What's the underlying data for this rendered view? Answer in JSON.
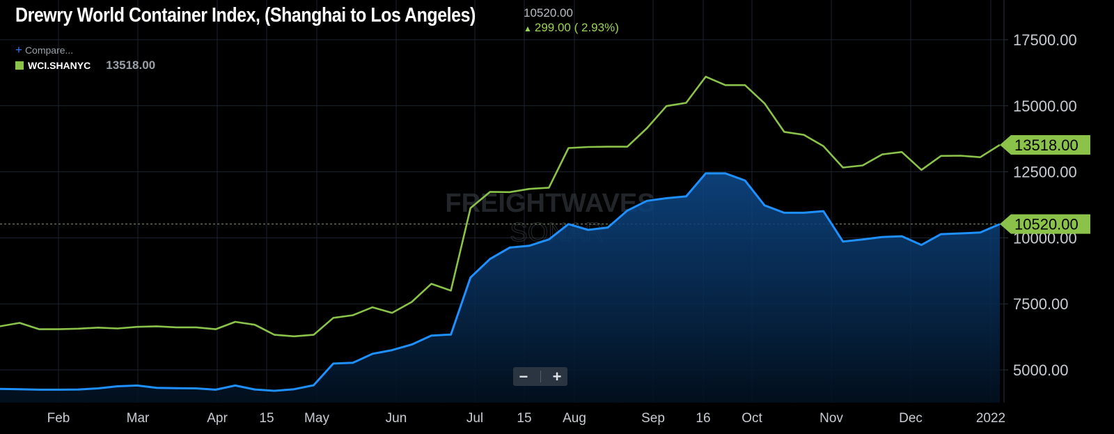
{
  "header": {
    "title": "Drewry World Container Index, (Shanghai to Los Angeles)",
    "last_value": "10520.00",
    "change": "299.00 ( 2.93%)"
  },
  "compare_label": "Compare...",
  "legend": {
    "symbol": "WCI.SHANYC",
    "value": "13518.00",
    "color": "#8bc34a"
  },
  "watermark": {
    "line1": "FREIGHTWAVES",
    "line2": "SONAR"
  },
  "zoom": {
    "minus": "−",
    "plus": "+"
  },
  "colors": {
    "green": "#8bc34a",
    "blue": "#1e90ff",
    "grid": "#1e2733",
    "bg": "#000000"
  },
  "chart_data": {
    "type": "line",
    "x_axis_labels": [
      "Feb",
      "Mar",
      "Apr",
      "15",
      "May",
      "Jun",
      "Jul",
      "15",
      "Aug",
      "Sep",
      "16",
      "Oct",
      "Nov",
      "Dec",
      "2022"
    ],
    "y_axis_labels": [
      "17500.00",
      "15000.00",
      "12500.00",
      "10000.00",
      "7500.00",
      "5000.00"
    ],
    "ylim": [
      4000,
      18500
    ],
    "current_line_value": 10520,
    "series": [
      {
        "name": "WCI.SHANYC",
        "color": "#8bc34a",
        "last_label": "13518.00",
        "values": [
          6650,
          6780,
          6540,
          6540,
          6560,
          6600,
          6570,
          6630,
          6650,
          6610,
          6610,
          6540,
          6820,
          6710,
          6330,
          6270,
          6330,
          6970,
          7070,
          7370,
          7160,
          7570,
          8260,
          8000,
          11130,
          11740,
          11730,
          11850,
          11900,
          13400,
          13440,
          13450,
          13450,
          14150,
          14990,
          15110,
          16100,
          15780,
          15780,
          15090,
          14010,
          13900,
          13470,
          12660,
          12740,
          13160,
          13250,
          12570,
          13100,
          13110,
          13050,
          13518
        ]
      },
      {
        "name": "",
        "color": "#1e90ff",
        "last_label": "10520.00",
        "values": [
          4280,
          4270,
          4250,
          4250,
          4260,
          4300,
          4380,
          4410,
          4320,
          4310,
          4300,
          4250,
          4410,
          4260,
          4210,
          4270,
          4420,
          5240,
          5270,
          5610,
          5750,
          5960,
          6300,
          6340,
          8500,
          9200,
          9630,
          9700,
          9940,
          10520,
          10300,
          10390,
          11030,
          11400,
          11500,
          11570,
          12440,
          12440,
          12170,
          11230,
          10950,
          10950,
          11010,
          9860,
          9940,
          10030,
          10060,
          9730,
          10140,
          10170,
          10200,
          10520
        ]
      }
    ]
  }
}
